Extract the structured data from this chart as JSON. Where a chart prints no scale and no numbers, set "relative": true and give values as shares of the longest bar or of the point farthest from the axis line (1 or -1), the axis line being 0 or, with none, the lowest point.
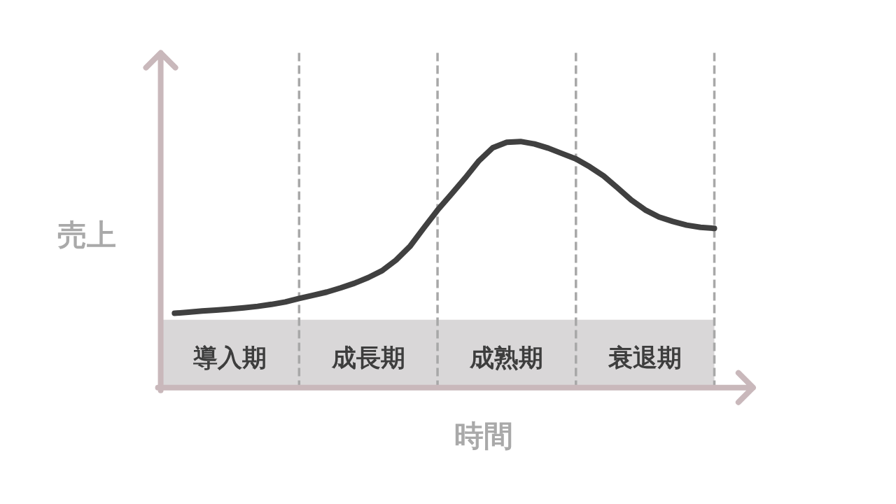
{
  "chart_data": {
    "type": "line",
    "relative": true,
    "xlabel": "時間",
    "ylabel": "売上",
    "grid": "x",
    "categories": [
      null,
      null,
      null,
      null,
      "導入期",
      null,
      null,
      null,
      null,
      null,
      null,
      null,
      null,
      null,
      "成長期",
      null,
      null,
      null,
      null,
      null,
      null,
      null,
      null,
      null,
      "成熟期",
      null,
      null,
      null,
      null,
      null,
      null,
      null,
      null,
      null,
      "衰退期",
      null,
      null,
      null,
      null,
      null
    ],
    "series": [
      {
        "color": "#404040",
        "values": [
          0.302,
          0.306,
          0.311,
          0.315,
          0.319,
          0.324,
          0.33,
          0.338,
          0.348,
          0.362,
          0.375,
          0.388,
          0.405,
          0.424,
          0.447,
          0.475,
          0.518,
          0.573,
          0.648,
          0.721,
          0.786,
          0.852,
          0.922,
          0.975,
          0.997,
          1.0,
          0.99,
          0.973,
          0.951,
          0.929,
          0.897,
          0.86,
          0.812,
          0.762,
          0.722,
          0.693,
          0.675,
          0.66,
          0.651,
          0.647
        ]
      }
    ]
  }
}
